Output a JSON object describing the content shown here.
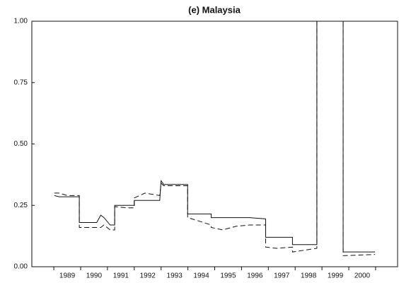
{
  "chart_data": {
    "type": "line",
    "title": "(e) Malaysia",
    "x": [
      1989.02,
      1989.2,
      1989.5,
      1989.95,
      1989.95,
      1990.3,
      1990.6,
      1990.75,
      1990.87,
      1991.1,
      1991.27,
      1991.27,
      1991.7,
      1992.0,
      1992.0,
      1992.4,
      1992.95,
      1993.0,
      1993.1,
      1993.99,
      1993.99,
      1994.3,
      1994.87,
      1994.87,
      1995.3,
      1995.8,
      1996.3,
      1996.9,
      1996.9,
      1997.3,
      1997.9,
      1997.9,
      1998.81,
      1998.81,
      1999.79,
      1999.79,
      2000.98
    ],
    "series": [
      {
        "color": "#111111",
        "dash": "none",
        "values": [
          0.29,
          0.285,
          0.285,
          0.285,
          0.18,
          0.18,
          0.18,
          0.21,
          0.2,
          0.17,
          0.17,
          0.25,
          0.25,
          0.25,
          0.27,
          0.27,
          0.27,
          0.35,
          0.335,
          0.335,
          0.215,
          0.215,
          0.215,
          0.2,
          0.2,
          0.2,
          0.2,
          0.195,
          0.12,
          0.12,
          0.12,
          0.09,
          0.09,
          1.0,
          1.0,
          0.06,
          0.06
        ]
      },
      {
        "color": "#111111",
        "dash": "7 4",
        "values": [
          0.3,
          0.3,
          0.29,
          0.29,
          0.16,
          0.16,
          0.16,
          0.16,
          0.17,
          0.15,
          0.15,
          0.245,
          0.24,
          0.24,
          0.28,
          0.3,
          0.29,
          0.34,
          0.33,
          0.33,
          0.2,
          0.19,
          0.17,
          0.16,
          0.15,
          0.165,
          0.17,
          0.17,
          0.08,
          0.075,
          0.08,
          0.06,
          0.075,
          1.0,
          1.0,
          0.045,
          0.05
        ]
      }
    ],
    "xlim": [
      1988.18,
      2001.82
    ],
    "xticks": [
      {
        "value": 1989.5,
        "label": "1989"
      },
      {
        "value": 1990.5,
        "label": "1990"
      },
      {
        "value": 1991.5,
        "label": "1991"
      },
      {
        "value": 1992.5,
        "label": "1992"
      },
      {
        "value": 1993.5,
        "label": "1993"
      },
      {
        "value": 1994.5,
        "label": "1994"
      },
      {
        "value": 1995.5,
        "label": "1995"
      },
      {
        "value": 1996.5,
        "label": "1996"
      },
      {
        "value": 1997.5,
        "label": "1997"
      },
      {
        "value": 1998.5,
        "label": "1998"
      },
      {
        "value": 1999.5,
        "label": "1999"
      },
      {
        "value": 2000.5,
        "label": "2000"
      }
    ],
    "xminorticks": [
      1989,
      1990,
      1991,
      1992,
      1993,
      1994,
      1995,
      1996,
      1997,
      1998,
      1999,
      2000,
      2001
    ],
    "ylim": [
      0,
      1
    ],
    "yticks": [
      {
        "value": 0,
        "label": "0.00"
      },
      {
        "value": 0.25,
        "label": "0.25"
      },
      {
        "value": 0.5,
        "label": "0.50"
      },
      {
        "value": 0.75,
        "label": "0.75"
      },
      {
        "value": 1,
        "label": "1.00"
      }
    ],
    "grid": false
  }
}
